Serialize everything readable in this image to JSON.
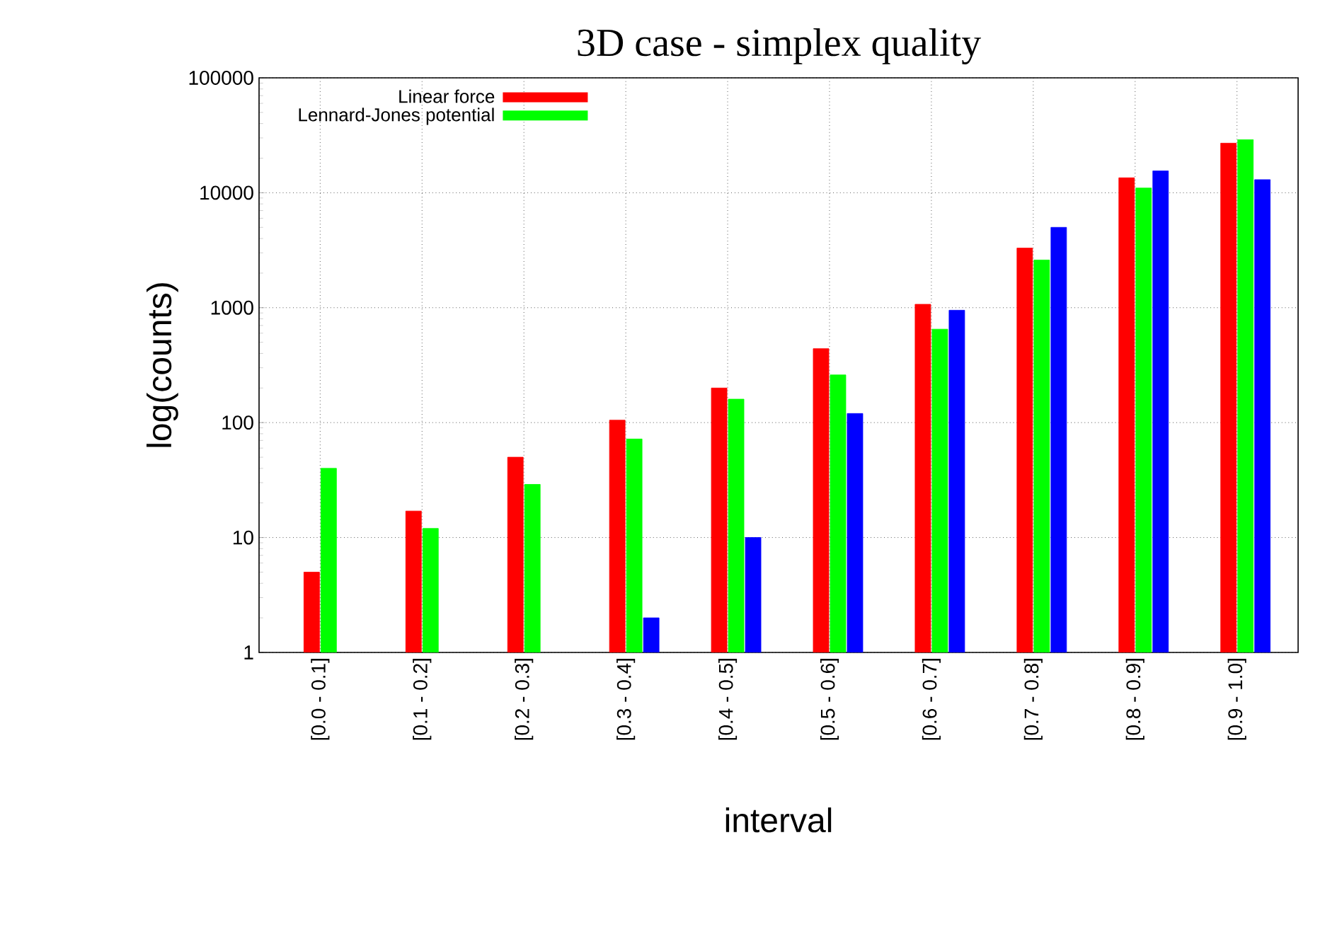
{
  "chart_data": {
    "type": "bar",
    "title": "3D case - simplex quality",
    "xlabel": "interval",
    "ylabel": "log(counts)",
    "categories": [
      "[0.0 - 0.1]",
      "[0.1 - 0.2]",
      "[0.2 - 0.3]",
      "[0.3 - 0.4]",
      "[0.4 - 0.5]",
      "[0.5 - 0.6]",
      "[0.6 - 0.7]",
      "[0.7 - 0.8]",
      "[0.8 - 0.9]",
      "[0.9 - 1.0]"
    ],
    "series": [
      {
        "name": "Linear force",
        "color": "#ff0000",
        "values": [
          5,
          17,
          50,
          105,
          200,
          440,
          1070,
          3300,
          13500,
          27000
        ]
      },
      {
        "name": "Lennard-Jones potential",
        "color": "#00ff00",
        "values": [
          40,
          12,
          29,
          72,
          160,
          260,
          650,
          2600,
          11000,
          29000
        ]
      },
      {
        "color": "#0000ff",
        "values": [
          null,
          null,
          null,
          2,
          10,
          120,
          950,
          5000,
          15500,
          13000
        ]
      }
    ],
    "log": "y",
    "ylim": [
      1,
      100000
    ],
    "yticks": [
      1,
      10,
      100,
      1000,
      10000,
      100000
    ],
    "grid": true,
    "legend": "top left"
  }
}
